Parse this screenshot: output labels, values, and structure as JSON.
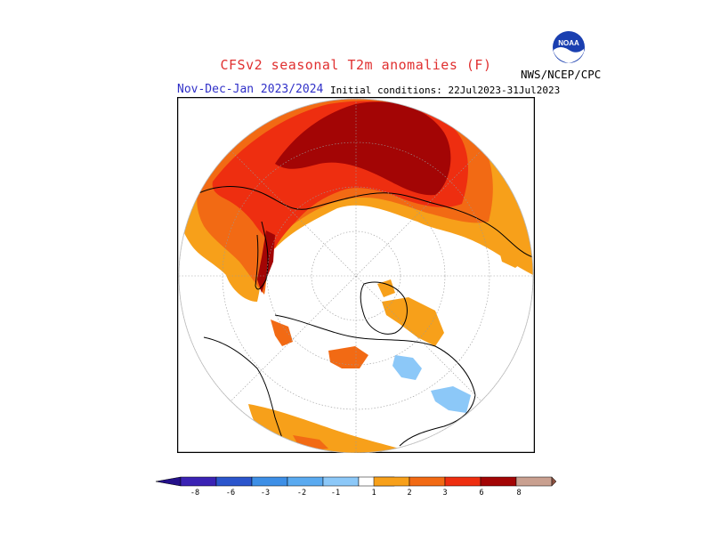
{
  "header": {
    "title": "CFSv2 seasonal T2m anomalies (F)",
    "period": "Nov-Dec-Jan 2023/2024",
    "initial_conditions": "Initial conditions: 22Jul2023-31Jul2023",
    "organization": "NWS/NCEP/CPC",
    "logo_text": "NOAA"
  },
  "colors": {
    "neg_8": "#3a22b4",
    "neg_6": "#2b55cc",
    "neg_3": "#3d8fe6",
    "neg_2": "#5aaaf0",
    "neg_1": "#8cc8f8",
    "neutral": "#ffffff",
    "pos_1": "#f7a01a",
    "pos_2": "#f26a14",
    "pos_3": "#ee2e10",
    "pos_6": "#a30505",
    "pos_8": "#c9a090",
    "pos_max": "#8a5040",
    "neg_min": "#24108a"
  },
  "legend": {
    "labels": [
      "-8",
      "-6",
      "-3",
      "-2",
      "-1",
      "1",
      "2",
      "3",
      "6",
      "8"
    ]
  }
}
